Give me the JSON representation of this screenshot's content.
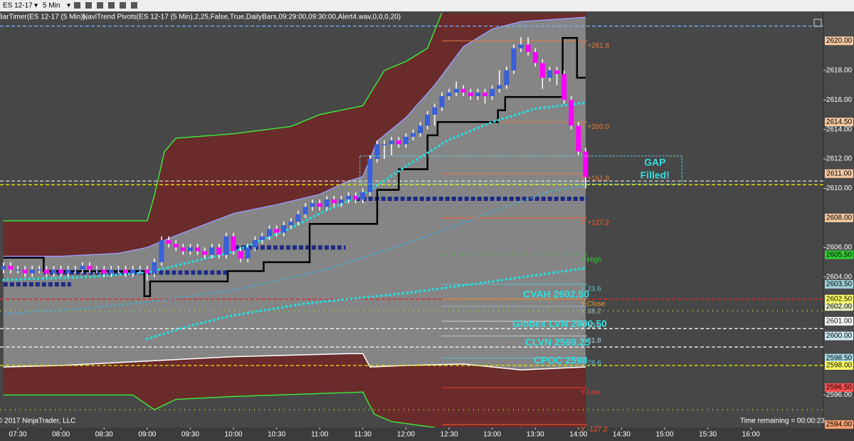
{
  "toolbar": {
    "instrument": "ES 12-17",
    "interval": "5 Min"
  },
  "indicator_labels": [
    "BarTimer(ES 12-17 (5 Min)),",
    "NaviTrend Pivots(ES 12-17 (5 Min),2,25,False,True,DailyBars,09:29:00,09:30:00,Alert4.wav,0,0,0,20)"
  ],
  "copyright": "© 2017 NinjaTrader, LLC",
  "time_remaining": "Time remaining = 00:00:23",
  "chart_data": {
    "type": "candlestick",
    "up_color": "#3a5fd9",
    "down_color": "#ff00ff",
    "wick_color": "#ffffff",
    "band_fill": "#6a2b2b",
    "envelope_fill": "#858585",
    "xlim": [
      437.6,
      1010.4
    ],
    "xticks": [
      {
        "value": 450,
        "label": "07:30"
      },
      {
        "value": 480,
        "label": "08:00"
      },
      {
        "value": 510,
        "label": "08:30"
      },
      {
        "value": 540,
        "label": "09:00"
      },
      {
        "value": 570,
        "label": "09:30"
      },
      {
        "value": 600,
        "label": "10:00"
      },
      {
        "value": 630,
        "label": "10:30"
      },
      {
        "value": 660,
        "label": "11:00"
      },
      {
        "value": 690,
        "label": "11:30"
      },
      {
        "value": 720,
        "label": "12:00"
      },
      {
        "value": 750,
        "label": "12:30"
      },
      {
        "value": 780,
        "label": "13:00"
      },
      {
        "value": 810,
        "label": "13:30"
      },
      {
        "value": 840,
        "label": "14:00"
      },
      {
        "value": 870,
        "label": "14:30"
      },
      {
        "value": 900,
        "label": "15:00"
      },
      {
        "value": 930,
        "label": "15:30"
      },
      {
        "value": 960,
        "label": "16:00"
      }
    ],
    "ylim": [
      2593.8,
      2621.9
    ],
    "yticks": [
      {
        "value": 2596,
        "label": "2596.00"
      },
      {
        "value": 2604,
        "label": "2604.00"
      },
      {
        "value": 2606,
        "label": "2606.00"
      },
      {
        "value": 2610,
        "label": "2610.00"
      },
      {
        "value": 2612,
        "label": "2612.00"
      },
      {
        "value": 2614,
        "label": "2614.00"
      },
      {
        "value": 2616,
        "label": "2616.00"
      },
      {
        "value": 2618,
        "label": "2618.00"
      }
    ],
    "x": [
      440,
      445,
      450,
      455,
      460,
      465,
      470,
      475,
      480,
      485,
      490,
      495,
      500,
      505,
      510,
      515,
      520,
      525,
      530,
      535,
      540,
      545,
      550,
      555,
      560,
      565,
      570,
      575,
      580,
      585,
      590,
      595,
      600,
      605,
      610,
      615,
      620,
      625,
      630,
      635,
      640,
      645,
      650,
      655,
      660,
      665,
      670,
      675,
      680,
      685,
      690,
      695,
      700,
      705,
      710,
      715,
      720,
      725,
      730,
      735,
      740,
      745,
      750,
      755,
      760,
      765,
      770,
      775,
      780,
      785,
      790,
      795,
      800,
      805,
      810,
      815,
      820,
      825,
      830,
      835,
      840,
      845
    ],
    "ohlc": [
      [
        2604.5,
        2605.0,
        2604.25,
        2604.75
      ],
      [
        2604.75,
        2605.0,
        2604.25,
        2604.5
      ],
      [
        2604.5,
        2604.75,
        2604.25,
        2604.5
      ],
      [
        2604.5,
        2604.75,
        2604.0,
        2604.25
      ],
      [
        2604.25,
        2604.75,
        2604.0,
        2604.5
      ],
      [
        2604.5,
        2604.75,
        2604.25,
        2604.5
      ],
      [
        2604.5,
        2604.75,
        2604.0,
        2604.25
      ],
      [
        2604.25,
        2604.75,
        2604.0,
        2604.5
      ],
      [
        2604.5,
        2604.75,
        2604.0,
        2604.25
      ],
      [
        2604.25,
        2604.75,
        2604.0,
        2604.5
      ],
      [
        2604.5,
        2604.75,
        2604.25,
        2604.5
      ],
      [
        2604.5,
        2605.0,
        2604.25,
        2604.75
      ],
      [
        2604.75,
        2605.0,
        2604.25,
        2604.5
      ],
      [
        2604.5,
        2604.75,
        2604.25,
        2604.5
      ],
      [
        2604.5,
        2604.75,
        2604.0,
        2604.25
      ],
      [
        2604.25,
        2604.75,
        2604.0,
        2604.5
      ],
      [
        2604.5,
        2604.75,
        2604.25,
        2604.5
      ],
      [
        2604.5,
        2604.75,
        2604.0,
        2604.25
      ],
      [
        2604.25,
        2604.75,
        2604.0,
        2604.5
      ],
      [
        2604.5,
        2604.75,
        2604.25,
        2604.5
      ],
      [
        2604.5,
        2604.75,
        2603.75,
        2604.25
      ],
      [
        2604.25,
        2605.25,
        2604.0,
        2605.0
      ],
      [
        2605.0,
        2606.75,
        2604.75,
        2606.5
      ],
      [
        2606.5,
        2606.75,
        2606.0,
        2606.25
      ],
      [
        2606.25,
        2606.5,
        2605.75,
        2606.0
      ],
      [
        2606.0,
        2606.25,
        2605.5,
        2605.75
      ],
      [
        2605.75,
        2606.25,
        2605.5,
        2606.0
      ],
      [
        2606.0,
        2606.25,
        2605.5,
        2605.75
      ],
      [
        2605.75,
        2606.0,
        2605.25,
        2605.5
      ],
      [
        2605.5,
        2606.25,
        2605.25,
        2606.0
      ],
      [
        2606.0,
        2606.25,
        2605.25,
        2605.5
      ],
      [
        2605.5,
        2607.0,
        2605.25,
        2606.75
      ],
      [
        2606.75,
        2607.0,
        2605.5,
        2605.75
      ],
      [
        2605.75,
        2606.0,
        2605.0,
        2605.25
      ],
      [
        2605.25,
        2606.25,
        2605.0,
        2606.0
      ],
      [
        2606.0,
        2606.75,
        2605.75,
        2606.5
      ],
      [
        2606.5,
        2607.0,
        2606.25,
        2606.75
      ],
      [
        2606.75,
        2607.5,
        2606.5,
        2607.25
      ],
      [
        2607.25,
        2607.5,
        2606.75,
        2607.0
      ],
      [
        2607.0,
        2607.75,
        2606.75,
        2607.5
      ],
      [
        2607.5,
        2608.0,
        2607.25,
        2607.75
      ],
      [
        2607.75,
        2608.5,
        2607.5,
        2608.25
      ],
      [
        2608.25,
        2609.0,
        2608.0,
        2608.75
      ],
      [
        2608.75,
        2609.25,
        2608.5,
        2609.0
      ],
      [
        2609.0,
        2609.25,
        2608.5,
        2608.75
      ],
      [
        2608.75,
        2609.5,
        2608.5,
        2609.25
      ],
      [
        2609.25,
        2609.5,
        2608.75,
        2609.0
      ],
      [
        2609.0,
        2609.5,
        2608.75,
        2609.25
      ],
      [
        2609.25,
        2609.75,
        2609.0,
        2609.5
      ],
      [
        2609.5,
        2609.75,
        2609.0,
        2609.25
      ],
      [
        2609.25,
        2610.0,
        2609.0,
        2609.75
      ],
      [
        2609.75,
        2612.25,
        2609.5,
        2612.0
      ],
      [
        2612.0,
        2613.25,
        2611.75,
        2613.0
      ],
      [
        2613.0,
        2613.25,
        2612.0,
        2613.0
      ],
      [
        2613.0,
        2613.5,
        2612.25,
        2613.25
      ],
      [
        2613.25,
        2613.5,
        2612.75,
        2613.0
      ],
      [
        2613.0,
        2613.75,
        2612.75,
        2613.5
      ],
      [
        2613.5,
        2614.0,
        2613.25,
        2613.75
      ],
      [
        2613.75,
        2614.5,
        2613.5,
        2614.25
      ],
      [
        2614.25,
        2615.25,
        2614.0,
        2615.0
      ],
      [
        2615.0,
        2615.75,
        2614.25,
        2615.5
      ],
      [
        2615.5,
        2616.5,
        2615.25,
        2616.25
      ],
      [
        2616.25,
        2616.75,
        2616.0,
        2616.5
      ],
      [
        2616.5,
        2617.25,
        2616.25,
        2616.75
      ],
      [
        2616.75,
        2617.0,
        2616.25,
        2616.5
      ],
      [
        2616.5,
        2616.75,
        2616.0,
        2616.25
      ],
      [
        2616.25,
        2616.75,
        2616.0,
        2616.5
      ],
      [
        2616.5,
        2616.75,
        2615.75,
        2616.25
      ],
      [
        2616.25,
        2617.0,
        2616.0,
        2616.75
      ],
      [
        2616.75,
        2618.0,
        2616.5,
        2617.0
      ],
      [
        2617.0,
        2618.25,
        2616.75,
        2618.0
      ],
      [
        2618.0,
        2619.75,
        2617.75,
        2619.5
      ],
      [
        2619.5,
        2620.25,
        2619.25,
        2619.75
      ],
      [
        2619.75,
        2620.25,
        2619.0,
        2619.25
      ],
      [
        2619.25,
        2619.5,
        2618.25,
        2618.5
      ],
      [
        2618.5,
        2618.75,
        2616.75,
        2617.5
      ],
      [
        2617.5,
        2618.25,
        2617.25,
        2618.0
      ],
      [
        2618.0,
        2618.25,
        2617.0,
        2617.75
      ],
      [
        2617.75,
        2618.0,
        2615.75,
        2616.0
      ],
      [
        2616.0,
        2616.25,
        2614.0,
        2614.25
      ],
      [
        2614.25,
        2614.5,
        2612.25,
        2612.5
      ],
      [
        2612.5,
        2612.75,
        2610.0,
        2610.75
      ]
    ],
    "upper_band": {
      "color": "#3ee03e",
      "x": [
        440,
        540,
        545,
        552,
        560,
        600,
        640,
        660,
        690,
        705,
        720,
        735,
        745
      ],
      "values": [
        2607.8,
        2607.8,
        2609.5,
        2612.5,
        2613.4,
        2613.7,
        2614.2,
        2615.0,
        2615.6,
        2618.0,
        2618.6,
        2619.5,
        2621.9
      ]
    },
    "envelope": {
      "color": "#9a9af0",
      "x": [
        440,
        480,
        520,
        540,
        560,
        600,
        630,
        660,
        680,
        690,
        700,
        720,
        740,
        760,
        780,
        800,
        845
      ],
      "values": [
        2605.4,
        2605.4,
        2605.6,
        2606.0,
        2606.8,
        2608.3,
        2608.9,
        2609.6,
        2610.5,
        2610.8,
        2613.2,
        2614.8,
        2617.0,
        2619.6,
        2620.8,
        2621.3,
        2621.6
      ]
    },
    "base_line": {
      "color": "#ffffff",
      "x": [
        440,
        480,
        520,
        560,
        600,
        640,
        680,
        690,
        695,
        720,
        760,
        800,
        845
      ],
      "values": [
        2597.9,
        2598.0,
        2598.2,
        2598.4,
        2598.6,
        2598.7,
        2598.8,
        2598.8,
        2597.9,
        2598.0,
        2598.1,
        2597.7,
        2597.9
      ]
    },
    "lower_band": {
      "color": "#3ee03e",
      "x": [
        440,
        530,
        545,
        560,
        600,
        660,
        690,
        698,
        710,
        740
      ],
      "values": [
        2596.0,
        2596.0,
        2595.0,
        2595.7,
        2595.9,
        2596.1,
        2596.2,
        2594.7,
        2594.2,
        2593.8
      ]
    },
    "lines": [
      {
        "color": "#000000",
        "style": "solid",
        "x": [
          440,
          468,
          468,
          538,
          538,
          542,
          542,
          596,
          596,
          621,
          621,
          653,
          653,
          700,
          700,
          715,
          715,
          735,
          735,
          742,
          742,
          784,
          784,
          789,
          789,
          829,
          829,
          839,
          839,
          845
        ],
        "values": [
          2605.3,
          2605.3,
          2604.4,
          2604.4,
          2602.7,
          2602.7,
          2603.7,
          2603.7,
          2604.4,
          2604.4,
          2605.0,
          2605.0,
          2607.6,
          2607.6,
          2609.9,
          2609.9,
          2611.3,
          2611.3,
          2613.6,
          2613.6,
          2614.5,
          2614.5,
          2615.3,
          2615.3,
          2616.2,
          2616.2,
          2620.2,
          2620.2,
          2617.5,
          2617.5
        ]
      },
      {
        "color": "#22dede",
        "style": "dotted",
        "x": [
          440,
          500,
          540,
          600,
          640,
          660,
          690,
          700,
          720,
          750,
          780,
          810,
          845
        ],
        "values": [
          2603.8,
          2604.0,
          2604.3,
          2605.7,
          2607.3,
          2608.3,
          2609.6,
          2610.2,
          2611.5,
          2613.3,
          2614.5,
          2615.4,
          2615.8
        ]
      },
      {
        "color": "#3ab0e0",
        "style": "dashed",
        "x": [
          440,
          500,
          540,
          600,
          660,
          700,
          730,
          780,
          820,
          845
        ],
        "values": [
          2601.5,
          2601.9,
          2602.3,
          2603.1,
          2604.4,
          2605.6,
          2606.6,
          2608.4,
          2609.8,
          2610.2
        ]
      },
      {
        "color": "#22dede",
        "style": "dotted",
        "x": [
          540,
          570,
          600,
          650,
          690,
          720,
          780,
          845
        ],
        "values": [
          2599.8,
          2600.7,
          2601.4,
          2602.2,
          2602.6,
          2602.9,
          2603.7,
          2604.6
        ]
      }
    ],
    "pivot_color": "#1f2a85",
    "pivot_segments": [
      {
        "x": [
          440,
          487
        ],
        "value": 2603.5
      },
      {
        "x": [
          468,
          596
        ],
        "value": 2604.3
      },
      {
        "x": [
          601,
          678
        ],
        "value": 2606.0
      },
      {
        "x": [
          685,
          846
        ],
        "value": 2609.3
      }
    ],
    "levels": [
      {
        "label": "Y +261.8",
        "value": 2620.0,
        "color": "#e07b45",
        "style": "solid",
        "tag": "2620.00",
        "tag_color": "#f5c8a0"
      },
      {
        "label": "Y +200.0",
        "value": 2614.5,
        "color": "#e07b45",
        "style": "solid",
        "tag": "2614.50",
        "tag_color": "#f5c8a0"
      },
      {
        "label": "Y +161.8",
        "value": 2611.0,
        "color": "#e07b45",
        "style": "solid",
        "tag": "2611.00",
        "tag_color": "#f5c8a0"
      },
      {
        "label": "Y +127.2",
        "value": 2608.0,
        "color": "#ff5a28",
        "style": "solid",
        "tag": "2608.00",
        "tag_color": "#f5c8a0"
      },
      {
        "label": "Y-High",
        "value": 2605.5,
        "color": "#2ecc2e",
        "style": "dotted",
        "tag": "2605.50",
        "tag_color": "#33cc33"
      },
      {
        "label": "Y 23.6",
        "value": 2603.5,
        "color": "#5cc0c8",
        "style": "solid",
        "tag": "2603.50",
        "tag_color": "#9fd0d8"
      },
      {
        "label": "Y-Close",
        "value": 2602.5,
        "color": "#e0a040",
        "style": "solid"
      },
      {
        "label": "Y 38.2",
        "value": 2602.0,
        "color": "#9ab0b8",
        "style": "solid",
        "tag": "2602.00",
        "tag_color": "#e8f0c0"
      },
      {
        "label": "Y 50.0",
        "value": 2601.0,
        "color": "#d8d8d8",
        "style": "solid",
        "tag": "2601.00",
        "tag_color": "#ffffff"
      },
      {
        "label": "Y 61.8",
        "value": 2600.0,
        "color": "#a8d0d8",
        "style": "solid",
        "tag": "2600.00",
        "tag_color": "#c8e8f0"
      },
      {
        "label": "Y 78.6",
        "value": 2598.5,
        "color": "#5cc0d8",
        "style": "solid",
        "tag": "2598.50",
        "tag_color": "#a8d8e8"
      },
      {
        "label": "Y-Low",
        "value": 2596.5,
        "color": "#ee3333",
        "style": "solid",
        "tag": "2596.50",
        "tag_color": "#ff5050"
      },
      {
        "label": "Y -127.2",
        "value": 2594.0,
        "color": "#ff5a28",
        "style": "solid",
        "tag": "2594.00",
        "tag_color": "#f5a070"
      }
    ],
    "level_x": [
      745,
      846
    ],
    "full_lines": [
      {
        "value": 2621.0,
        "color": "#6fb3ff",
        "style": "dashed"
      },
      {
        "value": 2610.5,
        "color": "#dddddd",
        "style": "dashed"
      },
      {
        "value": 2610.25,
        "color": "#e8e800",
        "style": "dashed"
      },
      {
        "value": 2602.5,
        "color": "#e02828",
        "style": "dashed",
        "label": "CVAH 2602.50",
        "tag": "2602.50",
        "tag_color": "#ffff66"
      },
      {
        "value": 2601.7,
        "color": "#9acd32",
        "style": "dotted"
      },
      {
        "value": 2600.5,
        "color": "#ffffff",
        "style": "dashed",
        "label": "Globex LVN 2600.50"
      },
      {
        "value": 2599.25,
        "color": "#ffffff",
        "style": "dashed",
        "label": "CLVN 2599.25"
      },
      {
        "value": 2598.0,
        "color": "#e8e800",
        "style": "dashed",
        "label": "CPOC 2598",
        "tag": "2598.00",
        "tag_color": "#ffff66"
      },
      {
        "value": 2595.0,
        "color": "#9acd32",
        "style": "dotted"
      }
    ],
    "gap_box": {
      "text": [
        "GAP",
        "Filled!"
      ],
      "x": [
        688,
        912
      ],
      "y": [
        2610.3,
        2612.2
      ],
      "color": "#66d0e0"
    }
  }
}
